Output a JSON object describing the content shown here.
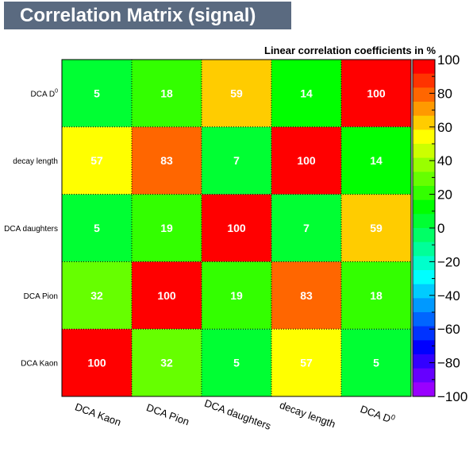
{
  "chart_data": {
    "type": "heatmap",
    "title": "Correlation Matrix (signal)",
    "subtitle": "Linear correlation coefficients in %",
    "x_categories": [
      "DCA Kaon",
      "DCA Pion",
      "DCA daughters",
      "decay length",
      "DCA D0"
    ],
    "y_categories_top_to_bottom": [
      "DCA D0",
      "decay length",
      "DCA daughters",
      "DCA Pion",
      "DCA Kaon"
    ],
    "values_top_to_bottom": [
      [
        5,
        18,
        59,
        14,
        100
      ],
      [
        57,
        83,
        7,
        100,
        14
      ],
      [
        5,
        19,
        100,
        7,
        59
      ],
      [
        32,
        100,
        19,
        83,
        18
      ],
      [
        100,
        32,
        5,
        57,
        5
      ]
    ],
    "zlim": [
      -100,
      100
    ],
    "colorbar_ticks": [
      100,
      80,
      60,
      40,
      20,
      0,
      -20,
      -40,
      -60,
      -80,
      -100
    ],
    "colorbar_colors_top_to_bottom": [
      "#ff0000",
      "#ff3300",
      "#ff6600",
      "#ff9900",
      "#ffcc00",
      "#ffff00",
      "#ccff00",
      "#99ff00",
      "#66ff00",
      "#33ff00",
      "#00ff00",
      "#00ff33",
      "#00ff66",
      "#00ff99",
      "#00ffcc",
      "#00ffff",
      "#00ccff",
      "#0099ff",
      "#0066ff",
      "#0033ff",
      "#0000ff",
      "#3300ff",
      "#6600ff",
      "#9900ff"
    ],
    "grid": true
  }
}
